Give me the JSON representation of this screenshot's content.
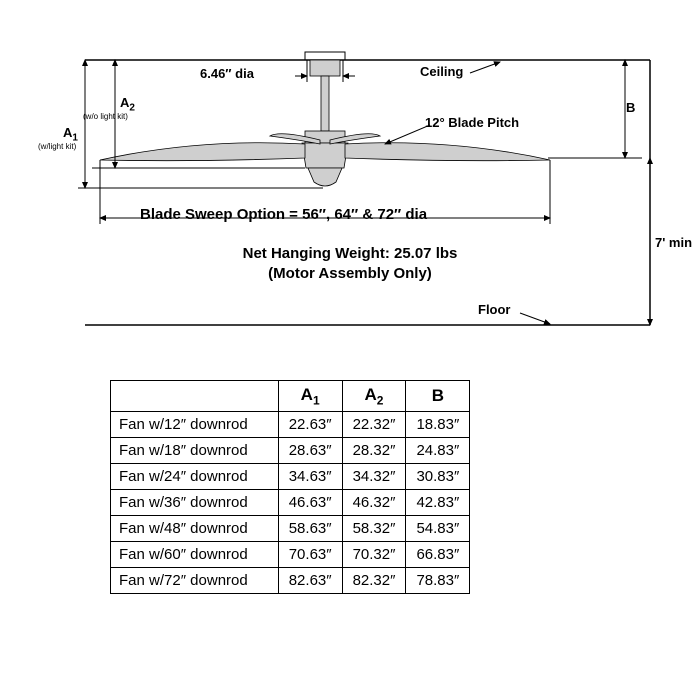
{
  "diagram": {
    "type": "technical-diagram",
    "canopy_dia_label": "6.46″ dia",
    "ceiling_label": "Ceiling",
    "floor_label": "Floor",
    "blade_pitch_label": "12° Blade Pitch",
    "a1_label": "A",
    "a1_sub": "1",
    "a1_note": "(w/light kit)",
    "a2_label": "A",
    "a2_sub": "2",
    "a2_note": "(w/o light kit)",
    "b_label": "B",
    "seven_ft_label": "7' min",
    "blade_sweep_label": "Blade Sweep Option = 56″, 64″ & 72″ dia",
    "net_weight_label": "Net Hanging Weight: 25.07 lbs",
    "motor_only_label": "(Motor Assembly Only)",
    "colors": {
      "line": "#000000",
      "fan_fill": "#cfcfcf",
      "background": "#ffffff"
    }
  },
  "table": {
    "type": "table",
    "columns": [
      "",
      "A₁",
      "A₂",
      "B"
    ],
    "col_header_plain": [
      "",
      "A",
      "A",
      "B"
    ],
    "col_header_sub": [
      "",
      "1",
      "2",
      ""
    ],
    "rows": [
      [
        "Fan w/12″ downrod",
        "22.63″",
        "22.32″",
        "18.83″"
      ],
      [
        "Fan w/18″ downrod",
        "28.63″",
        "28.32″",
        "24.83″"
      ],
      [
        "Fan w/24″ downrod",
        "34.63″",
        "34.32″",
        "30.83″"
      ],
      [
        "Fan w/36″ downrod",
        "46.63″",
        "46.32″",
        "42.83″"
      ],
      [
        "Fan w/48″ downrod",
        "58.63″",
        "58.32″",
        "54.83″"
      ],
      [
        "Fan w/60″ downrod",
        "70.63″",
        "70.32″",
        "66.83″"
      ],
      [
        "Fan w/72″ downrod",
        "82.63″",
        "82.32″",
        "78.83″"
      ]
    ]
  }
}
